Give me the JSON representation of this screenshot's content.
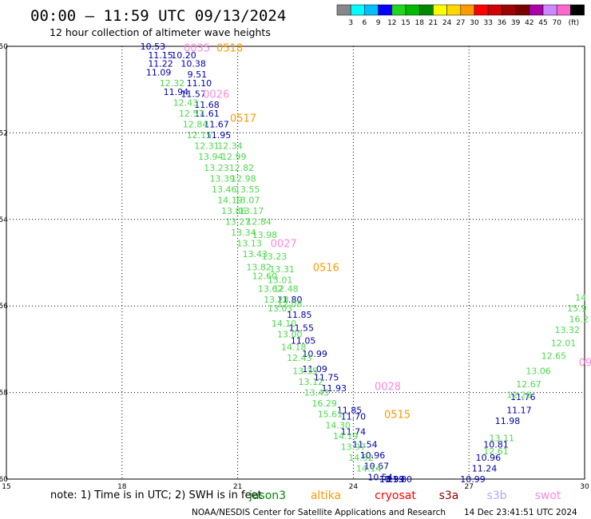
{
  "header": {
    "title": "00:00 – 11:59 UTC 09/13/2024",
    "subtitle": "12 hour collection of altimeter wave heights"
  },
  "colorbar": {
    "colors": [
      "#888888",
      "#00ffff",
      "#00bfff",
      "#0000ff",
      "#1fd71f",
      "#00bb00",
      "#008800",
      "#ffff00",
      "#ffd700",
      "#ff9900",
      "#ff0000",
      "#d00000",
      "#a00000",
      "#7a0000",
      "#aa00aa",
      "#cc88ff",
      "#ff66cc",
      "#000000"
    ],
    "labels": [
      "3",
      "6",
      "9",
      "12",
      "15",
      "18",
      "21",
      "24",
      "27",
      "30",
      "33",
      "36",
      "39",
      "42",
      "45",
      "70"
    ],
    "unit": "(ft)"
  },
  "footer": {
    "note": "note: 1) Time is in UTC; 2) SWH is in feet",
    "credit": "NOAA/NESDIS Center for Satellite Applications and Research",
    "timestamp": "14 Dec 23:41:51 UTC 2024"
  },
  "legend": [
    {
      "name": "jason3",
      "color": "#008800"
    },
    {
      "name": "altika",
      "color": "#ff9900"
    },
    {
      "name": "cryosat",
      "color": "#ff0000"
    },
    {
      "name": "s3a",
      "color": "#8b0000"
    },
    {
      "name": "s3b",
      "color": "#b0a8f8"
    },
    {
      "name": "swot",
      "color": "#ff88dd"
    }
  ],
  "chart_data": {
    "type": "scatter",
    "xlim": [
      15,
      30
    ],
    "ylim": [
      -60,
      -50
    ],
    "xticks": [
      "15",
      "18",
      "21",
      "24",
      "27",
      "30"
    ],
    "yticks": [
      "-50",
      "-52",
      "-54",
      "-56",
      "-58",
      "-60"
    ],
    "grid": true,
    "time_labels": [
      {
        "text": "0518",
        "x": 20.45,
        "y": -50.03,
        "color": "#ff9900"
      },
      {
        "text": "0517",
        "x": 20.8,
        "y": -51.65,
        "color": "#ff9900"
      },
      {
        "text": "0516",
        "x": 22.95,
        "y": -55.1,
        "color": "#ff9900"
      },
      {
        "text": "0515",
        "x": 24.8,
        "y": -58.5,
        "color": "#ff9900"
      },
      {
        "text": "0035",
        "x": 19.6,
        "y": -50.03,
        "color": "#ff88dd"
      },
      {
        "text": "0026",
        "x": 20.1,
        "y": -51.1,
        "color": "#ff88dd"
      },
      {
        "text": "0027",
        "x": 21.85,
        "y": -54.55,
        "color": "#ff88dd"
      },
      {
        "text": "0028",
        "x": 24.55,
        "y": -57.85,
        "color": "#ff88dd"
      },
      {
        "text": "09",
        "x": 29.85,
        "y": -57.3,
        "color": "#ff88dd"
      }
    ],
    "series": [
      {
        "color": "#0000aa",
        "points": [
          {
            "x": 18.8,
            "y": -50.0,
            "v": "10.53"
          },
          {
            "x": 19.0,
            "y": -50.2,
            "v": "11.15"
          },
          {
            "x": 19.6,
            "y": -50.2,
            "v": "10.20"
          },
          {
            "x": 19.85,
            "y": -50.4,
            "v": "10.38"
          },
          {
            "x": 19.0,
            "y": -50.4,
            "v": "11.22"
          },
          {
            "x": 18.95,
            "y": -50.6,
            "v": "11.09"
          },
          {
            "x": 19.95,
            "y": -50.65,
            "v": "9.51"
          },
          {
            "x": 20.0,
            "y": -50.85,
            "v": "11.10"
          },
          {
            "x": 19.4,
            "y": -51.05,
            "v": "11.94"
          },
          {
            "x": 19.85,
            "y": -51.1,
            "v": "11.57"
          },
          {
            "x": 20.2,
            "y": -51.35,
            "v": "11.68"
          },
          {
            "x": 20.2,
            "y": -51.55,
            "v": "11.61"
          },
          {
            "x": 20.45,
            "y": -51.8,
            "v": "11.67"
          },
          {
            "x": 20.5,
            "y": -52.05,
            "v": "11.95"
          },
          {
            "x": 22.35,
            "y": -55.85,
            "v": "11.80"
          },
          {
            "x": 22.6,
            "y": -56.2,
            "v": "11.85"
          },
          {
            "x": 22.65,
            "y": -56.5,
            "v": "11.55"
          },
          {
            "x": 22.7,
            "y": -56.8,
            "v": "11.05"
          },
          {
            "x": 23.0,
            "y": -57.1,
            "v": "10.99"
          },
          {
            "x": 23.0,
            "y": -57.45,
            "v": "11.09"
          },
          {
            "x": 23.3,
            "y": -57.65,
            "v": "11.75"
          },
          {
            "x": 23.5,
            "y": -57.9,
            "v": "11.93"
          },
          {
            "x": 23.9,
            "y": -58.4,
            "v": "11.85"
          },
          {
            "x": 24.0,
            "y": -58.55,
            "v": "11.70"
          },
          {
            "x": 24.0,
            "y": -58.9,
            "v": "11.74"
          },
          {
            "x": 24.3,
            "y": -59.2,
            "v": "11.54"
          },
          {
            "x": 24.5,
            "y": -59.45,
            "v": "10.96"
          },
          {
            "x": 24.6,
            "y": -59.7,
            "v": "10.67"
          },
          {
            "x": 24.7,
            "y": -59.95,
            "v": "10.54"
          },
          {
            "x": 25.0,
            "y": -60.0,
            "v": "11.93"
          },
          {
            "x": 25.0,
            "y": -60.0,
            "v": "10.39"
          },
          {
            "x": 25.2,
            "y": -60.0,
            "v": "11.80"
          },
          {
            "x": 28.4,
            "y": -58.1,
            "v": "11.76"
          },
          {
            "x": 28.3,
            "y": -58.4,
            "v": "11.17"
          },
          {
            "x": 28.0,
            "y": -58.65,
            "v": "11.98"
          },
          {
            "x": 27.7,
            "y": -59.2,
            "v": "10.81"
          },
          {
            "x": 27.5,
            "y": -59.5,
            "v": "10.96"
          },
          {
            "x": 27.4,
            "y": -59.75,
            "v": "11.24"
          },
          {
            "x": 27.1,
            "y": -60.0,
            "v": "10.99"
          }
        ]
      },
      {
        "color": "#4cd94c",
        "points": [
          {
            "x": 19.3,
            "y": -50.85,
            "v": "12.32"
          },
          {
            "x": 19.65,
            "y": -51.3,
            "v": "12.43"
          },
          {
            "x": 19.8,
            "y": -51.55,
            "v": "12.57"
          },
          {
            "x": 19.9,
            "y": -51.8,
            "v": "12.84"
          },
          {
            "x": 20.0,
            "y": -52.05,
            "v": "12.15"
          },
          {
            "x": 20.2,
            "y": -52.3,
            "v": "12.31"
          },
          {
            "x": 20.8,
            "y": -52.3,
            "v": "12.34"
          },
          {
            "x": 20.3,
            "y": -52.55,
            "v": "13.94"
          },
          {
            "x": 20.9,
            "y": -52.55,
            "v": "12.99"
          },
          {
            "x": 20.45,
            "y": -52.8,
            "v": "13.23"
          },
          {
            "x": 21.1,
            "y": -52.8,
            "v": "12.82"
          },
          {
            "x": 20.6,
            "y": -53.05,
            "v": "13.39"
          },
          {
            "x": 21.15,
            "y": -53.05,
            "v": "12.98"
          },
          {
            "x": 20.65,
            "y": -53.3,
            "v": "13.46"
          },
          {
            "x": 21.25,
            "y": -53.3,
            "v": "13.55"
          },
          {
            "x": 20.8,
            "y": -53.55,
            "v": "14.19"
          },
          {
            "x": 21.25,
            "y": -53.55,
            "v": "13.07"
          },
          {
            "x": 20.9,
            "y": -53.8,
            "v": "13.86"
          },
          {
            "x": 21.35,
            "y": -53.8,
            "v": "13.17"
          },
          {
            "x": 21.0,
            "y": -54.05,
            "v": "13.27"
          },
          {
            "x": 21.55,
            "y": -54.05,
            "v": "12.84"
          },
          {
            "x": 21.15,
            "y": -54.3,
            "v": "13.34"
          },
          {
            "x": 21.7,
            "y": -54.35,
            "v": "13.98"
          },
          {
            "x": 21.3,
            "y": -54.55,
            "v": "13.13"
          },
          {
            "x": 21.45,
            "y": -54.8,
            "v": "13.43"
          },
          {
            "x": 21.95,
            "y": -54.85,
            "v": "13.23"
          },
          {
            "x": 21.55,
            "y": -55.1,
            "v": "13.82"
          },
          {
            "x": 22.15,
            "y": -55.15,
            "v": "13.31"
          },
          {
            "x": 21.7,
            "y": -55.3,
            "v": "12.60"
          },
          {
            "x": 22.1,
            "y": -55.4,
            "v": "13.01"
          },
          {
            "x": 21.85,
            "y": -55.6,
            "v": "13.62"
          },
          {
            "x": 22.25,
            "y": -55.6,
            "v": "12.48"
          },
          {
            "x": 22.0,
            "y": -55.85,
            "v": "13.28"
          },
          {
            "x": 22.35,
            "y": -55.95,
            "v": "12.08"
          },
          {
            "x": 22.1,
            "y": -56.05,
            "v": "13.03"
          },
          {
            "x": 22.2,
            "y": -56.4,
            "v": "14.10"
          },
          {
            "x": 22.35,
            "y": -56.65,
            "v": "13.00"
          },
          {
            "x": 22.45,
            "y": -56.95,
            "v": "14.18"
          },
          {
            "x": 22.6,
            "y": -57.2,
            "v": "12.43"
          },
          {
            "x": 22.75,
            "y": -57.5,
            "v": "13.35"
          },
          {
            "x": 22.9,
            "y": -57.75,
            "v": "13.12"
          },
          {
            "x": 23.05,
            "y": -58.0,
            "v": "13.43"
          },
          {
            "x": 23.25,
            "y": -58.25,
            "v": "16.29"
          },
          {
            "x": 23.4,
            "y": -58.5,
            "v": "15.61"
          },
          {
            "x": 23.6,
            "y": -58.75,
            "v": "14.30"
          },
          {
            "x": 23.8,
            "y": -59.0,
            "v": "14.19"
          },
          {
            "x": 24.0,
            "y": -59.25,
            "v": "13.97"
          },
          {
            "x": 24.2,
            "y": -59.5,
            "v": "14.52"
          },
          {
            "x": 24.4,
            "y": -59.75,
            "v": "14.14"
          },
          {
            "x": 29.9,
            "y": -55.8,
            "v": "14"
          },
          {
            "x": 29.8,
            "y": -56.05,
            "v": "15.9"
          },
          {
            "x": 29.85,
            "y": -56.3,
            "v": "16.2"
          },
          {
            "x": 29.55,
            "y": -56.55,
            "v": "13.32"
          },
          {
            "x": 29.45,
            "y": -56.85,
            "v": "12.01"
          },
          {
            "x": 29.2,
            "y": -57.15,
            "v": "12.65"
          },
          {
            "x": 28.8,
            "y": -57.5,
            "v": "13.06"
          },
          {
            "x": 28.55,
            "y": -57.8,
            "v": "12.67"
          },
          {
            "x": 28.3,
            "y": -58.05,
            "v": "12.28"
          },
          {
            "x": 27.85,
            "y": -59.05,
            "v": "13.11"
          },
          {
            "x": 27.7,
            "y": -59.35,
            "v": "12.61"
          }
        ]
      }
    ]
  }
}
